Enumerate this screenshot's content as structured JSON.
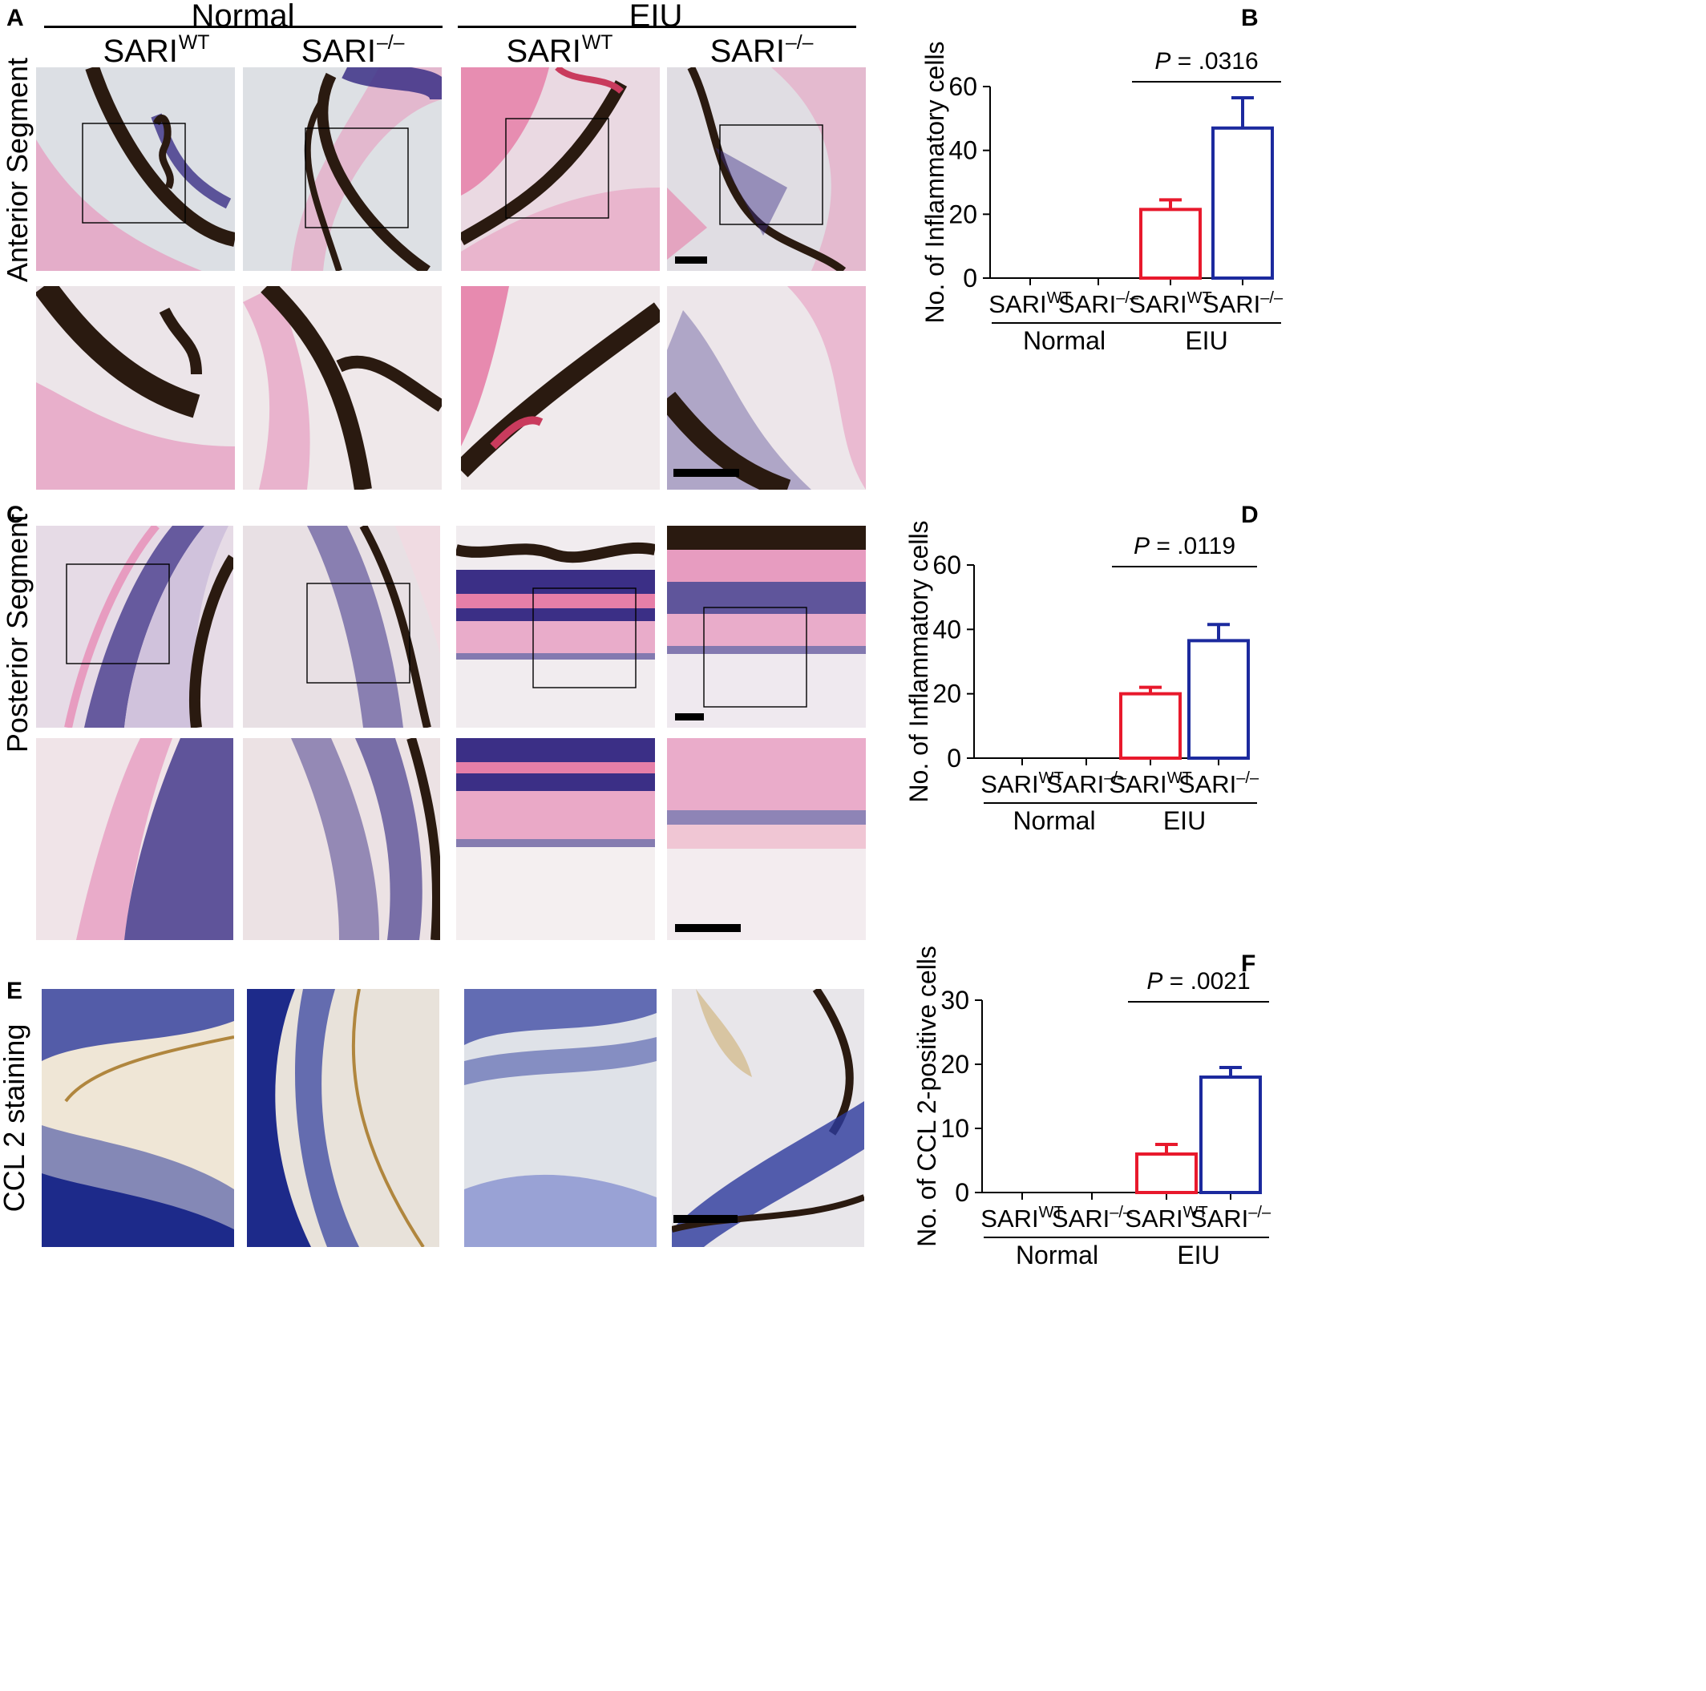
{
  "panels": {
    "A": "A",
    "B": "B",
    "C": "C",
    "D": "D",
    "E": "E",
    "F": "F"
  },
  "column_headers": {
    "normal": "Normal",
    "eiu": "EIU"
  },
  "genotypes": {
    "wt_base": "SARI",
    "wt_sup": "WT",
    "ko_base": "SARI",
    "ko_sup": "–/–"
  },
  "row_labels": {
    "anterior": "Anterior Segment",
    "posterior": "Posterior Segment",
    "ccl2": "CCL 2 staining"
  },
  "stain_colors": {
    "he_pink": "#e79cc0",
    "he_nuclei": "#3b2f86",
    "pigment": "#2a1a10",
    "ihc_blue": "#2c3a9c",
    "ihc_brown": "#b0863e"
  },
  "chart_data": [
    {
      "panel": "B",
      "type": "bar",
      "ylabel": "No. of Inflammatory cells",
      "ylim": [
        0,
        60
      ],
      "yticks": [
        0,
        20,
        40,
        60
      ],
      "categories": [
        "SARI WT Normal",
        "SARI –/– Normal",
        "SARI WT EIU",
        "SARI –/– EIU"
      ],
      "groups": [
        "Normal",
        "EIU"
      ],
      "values": [
        0,
        0,
        21.5,
        47
      ],
      "errors": [
        0,
        0,
        3,
        9.5
      ],
      "bar_colors": [
        "#e8192c",
        "#e8192c",
        "#e8192c",
        "#1c2a9e"
      ],
      "annotation": {
        "p_label": "P",
        "p_value": " = .0316"
      }
    },
    {
      "panel": "D",
      "type": "bar",
      "ylabel": "No. of Inflammatory cells",
      "ylim": [
        0,
        60
      ],
      "yticks": [
        0,
        20,
        40,
        60
      ],
      "categories": [
        "SARI WT Normal",
        "SARI –/– Normal",
        "SARI WT EIU",
        "SARI –/– EIU"
      ],
      "groups": [
        "Normal",
        "EIU"
      ],
      "values": [
        0,
        0,
        20,
        36.5
      ],
      "errors": [
        0,
        0,
        2,
        5
      ],
      "bar_colors": [
        "#e8192c",
        "#e8192c",
        "#e8192c",
        "#1c2a9e"
      ],
      "annotation": {
        "p_label": "P",
        "p_value": " = .0119"
      }
    },
    {
      "panel": "F",
      "type": "bar",
      "ylabel": "No. of CCL 2-positive cells",
      "ylim": [
        0,
        30
      ],
      "yticks": [
        0,
        10,
        20,
        30
      ],
      "categories": [
        "SARI WT Normal",
        "SARI –/– Normal",
        "SARI WT EIU",
        "SARI –/– EIU"
      ],
      "groups": [
        "Normal",
        "EIU"
      ],
      "values": [
        0,
        0,
        6,
        18
      ],
      "errors": [
        0,
        0,
        1.5,
        1.5
      ],
      "bar_colors": [
        "#e8192c",
        "#e8192c",
        "#e8192c",
        "#1c2a9e"
      ],
      "annotation": {
        "p_label": "P",
        "p_value": " = .0021"
      }
    }
  ]
}
